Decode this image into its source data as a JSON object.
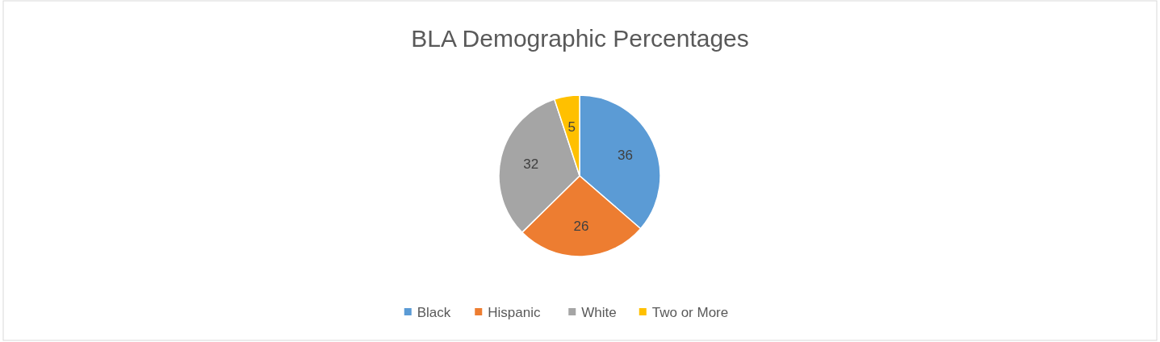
{
  "chart_data": {
    "type": "pie",
    "title": "BLA Demographic Percentages",
    "categories": [
      "Black",
      "Hispanic",
      "White",
      "Two or More"
    ],
    "values": [
      36,
      26,
      32,
      5
    ],
    "colors": [
      "#5b9bd5",
      "#ed7d31",
      "#a5a5a5",
      "#ffc000"
    ],
    "data_labels": true,
    "legend": "bottom"
  }
}
